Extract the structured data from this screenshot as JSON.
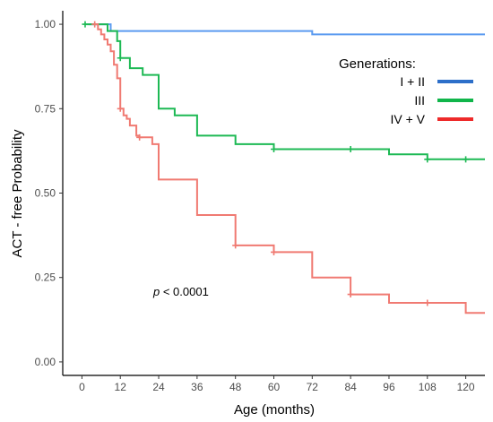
{
  "chart_data": {
    "type": "line",
    "subtype": "kaplan-meier-step",
    "xlabel": "Age (months)",
    "ylabel": "ACT - free Probability",
    "xlim": [
      -6,
      126
    ],
    "ylim": [
      -0.04,
      1.04
    ],
    "x_ticks": [
      0,
      12,
      24,
      36,
      48,
      60,
      72,
      84,
      96,
      108,
      120
    ],
    "x_tick_labels": [
      "0",
      "12",
      "24",
      "36",
      "48",
      "60",
      "72",
      "84",
      "96",
      "108",
      "120"
    ],
    "y_ticks": [
      0,
      0.25,
      0.5,
      0.75,
      1.0
    ],
    "y_tick_labels": [
      "0.00",
      "0.25",
      "0.50",
      "0.75",
      "1.00"
    ],
    "grid": false,
    "legend": {
      "title": "Generations:",
      "placement": "top-right"
    },
    "annotation": {
      "prefix": "p",
      "text": " < 0.0001"
    },
    "series": [
      {
        "name": "I + II",
        "color": "#5B9BF0",
        "legend_color": "#2D6FC9",
        "steps": [
          [
            2,
            1.0
          ],
          [
            9,
            0.98
          ],
          [
            72,
            0.97
          ],
          [
            126,
            0.97
          ]
        ],
        "censor_points": []
      },
      {
        "name": "III",
        "color": "#1DB954",
        "legend_color": "#10B54A",
        "steps": [
          [
            1,
            1.0
          ],
          [
            8,
            0.98
          ],
          [
            11,
            0.95
          ],
          [
            12,
            0.9
          ],
          [
            15,
            0.87
          ],
          [
            19,
            0.85
          ],
          [
            24,
            0.75
          ],
          [
            29,
            0.73
          ],
          [
            36,
            0.67
          ],
          [
            48,
            0.645
          ],
          [
            60,
            0.63
          ],
          [
            96,
            0.615
          ],
          [
            108,
            0.6
          ],
          [
            126,
            0.6
          ]
        ],
        "censor_points": [
          [
            1,
            1.0
          ],
          [
            12,
            0.9
          ],
          [
            60,
            0.63
          ],
          [
            84,
            0.63
          ],
          [
            108,
            0.6
          ],
          [
            120,
            0.6
          ]
        ]
      },
      {
        "name": "IV + V",
        "color": "#F07A72",
        "legend_color": "#EE2A2A",
        "steps": [
          [
            4,
            1.0
          ],
          [
            5,
            0.985
          ],
          [
            6,
            0.97
          ],
          [
            7,
            0.955
          ],
          [
            8,
            0.94
          ],
          [
            9,
            0.92
          ],
          [
            10,
            0.88
          ],
          [
            11,
            0.84
          ],
          [
            12,
            0.75
          ],
          [
            13,
            0.73
          ],
          [
            14,
            0.72
          ],
          [
            15,
            0.7
          ],
          [
            17,
            0.67
          ],
          [
            18,
            0.665
          ],
          [
            22,
            0.645
          ],
          [
            24,
            0.54
          ],
          [
            36,
            0.435
          ],
          [
            48,
            0.345
          ],
          [
            60,
            0.325
          ],
          [
            72,
            0.25
          ],
          [
            84,
            0.2
          ],
          [
            96,
            0.175
          ],
          [
            120,
            0.145
          ],
          [
            126,
            0.145
          ]
        ],
        "censor_points": [
          [
            4,
            1.0
          ],
          [
            12,
            0.75
          ],
          [
            18,
            0.665
          ],
          [
            48,
            0.345
          ],
          [
            60,
            0.325
          ],
          [
            84,
            0.2
          ],
          [
            108,
            0.175
          ]
        ]
      }
    ]
  }
}
